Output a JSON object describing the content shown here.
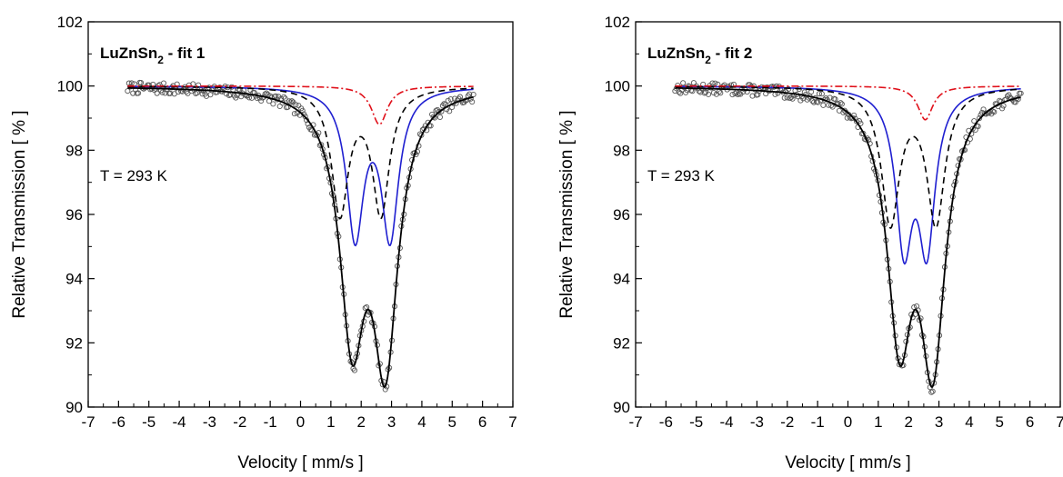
{
  "chart_data": [
    {
      "type": "line",
      "title": {
        "main": "LuZnSn",
        "sub": "2",
        "suffix": " -  fit 1"
      },
      "annotation": "T = 293 K",
      "xlabel": "Velocity  [ mm/s ]",
      "ylabel": "Relative Transmission  [ % ]",
      "xlim": [
        -7,
        7
      ],
      "ylim": [
        90,
        102
      ],
      "xticks": [
        -7,
        -6,
        -5,
        -4,
        -3,
        -2,
        -1,
        0,
        1,
        2,
        3,
        4,
        5,
        6,
        7
      ],
      "yticks": [
        90,
        92,
        94,
        96,
        98,
        100,
        102
      ],
      "grid": false,
      "data_range": [
        -5.7,
        5.7
      ],
      "total_dips": [
        {
          "center": 1.7,
          "depth": 7.3,
          "hwhm": 0.5
        },
        {
          "center": 2.8,
          "depth": 8.1,
          "hwhm": 0.5
        }
      ],
      "series": [
        {
          "style": "markers",
          "color": "#555555",
          "fit_of": "total",
          "seed": 7
        },
        {
          "style": "solid",
          "color": "#000000",
          "line": "total",
          "dips": [
            {
              "center": 1.7,
              "depth": 7.3,
              "hwhm": 0.5
            },
            {
              "center": 2.8,
              "depth": 8.1,
              "hwhm": 0.5
            }
          ]
        },
        {
          "style": "solid",
          "color": "#1f1fd0",
          "dips": [
            {
              "center": 1.8,
              "depth": 4.6,
              "hwhm": 0.34
            },
            {
              "center": 2.95,
              "depth": 4.6,
              "hwhm": 0.34
            }
          ]
        },
        {
          "style": "dashed",
          "color": "#000000",
          "dips": [
            {
              "center": 1.3,
              "depth": 3.9,
              "hwhm": 0.34
            },
            {
              "center": 2.65,
              "depth": 3.9,
              "hwhm": 0.34
            }
          ]
        },
        {
          "style": "dashdot",
          "color": "#e0101a",
          "dips": [
            {
              "center": 2.6,
              "depth": 1.2,
              "hwhm": 0.32
            }
          ]
        }
      ]
    },
    {
      "type": "line",
      "title": {
        "main": "LuZnSn",
        "sub": "2",
        "suffix": " -  fit 2"
      },
      "annotation": "T = 293 K",
      "xlabel": "Velocity  [ mm/s ]",
      "ylabel": "Relative Transmission  [ % ]",
      "xlim": [
        -7,
        7
      ],
      "ylim": [
        90,
        102
      ],
      "xticks": [
        -7,
        -6,
        -5,
        -4,
        -3,
        -2,
        -1,
        0,
        1,
        2,
        3,
        4,
        5,
        6,
        7
      ],
      "yticks": [
        90,
        92,
        94,
        96,
        98,
        100,
        102
      ],
      "grid": false,
      "data_range": [
        -5.7,
        5.7
      ],
      "total_dips": [
        {
          "center": 1.7,
          "depth": 7.3,
          "hwhm": 0.5
        },
        {
          "center": 2.8,
          "depth": 8.1,
          "hwhm": 0.5
        }
      ],
      "series": [
        {
          "style": "markers",
          "color": "#555555",
          "fit_of": "total",
          "seed": 13
        },
        {
          "style": "solid",
          "color": "#000000",
          "line": "total",
          "dips": [
            {
              "center": 1.7,
              "depth": 7.3,
              "hwhm": 0.5
            },
            {
              "center": 2.8,
              "depth": 8.1,
              "hwhm": 0.5
            }
          ]
        },
        {
          "style": "solid",
          "color": "#1f1fd0",
          "dips": [
            {
              "center": 1.85,
              "depth": 4.75,
              "hwhm": 0.33
            },
            {
              "center": 2.6,
              "depth": 4.75,
              "hwhm": 0.33
            }
          ]
        },
        {
          "style": "dashed",
          "color": "#000000",
          "dips": [
            {
              "center": 1.4,
              "depth": 4.2,
              "hwhm": 0.36
            },
            {
              "center": 2.9,
              "depth": 4.2,
              "hwhm": 0.36
            }
          ]
        },
        {
          "style": "dashdot",
          "color": "#e0101a",
          "dips": [
            {
              "center": 2.55,
              "depth": 1.05,
              "hwhm": 0.3
            }
          ]
        }
      ]
    }
  ]
}
